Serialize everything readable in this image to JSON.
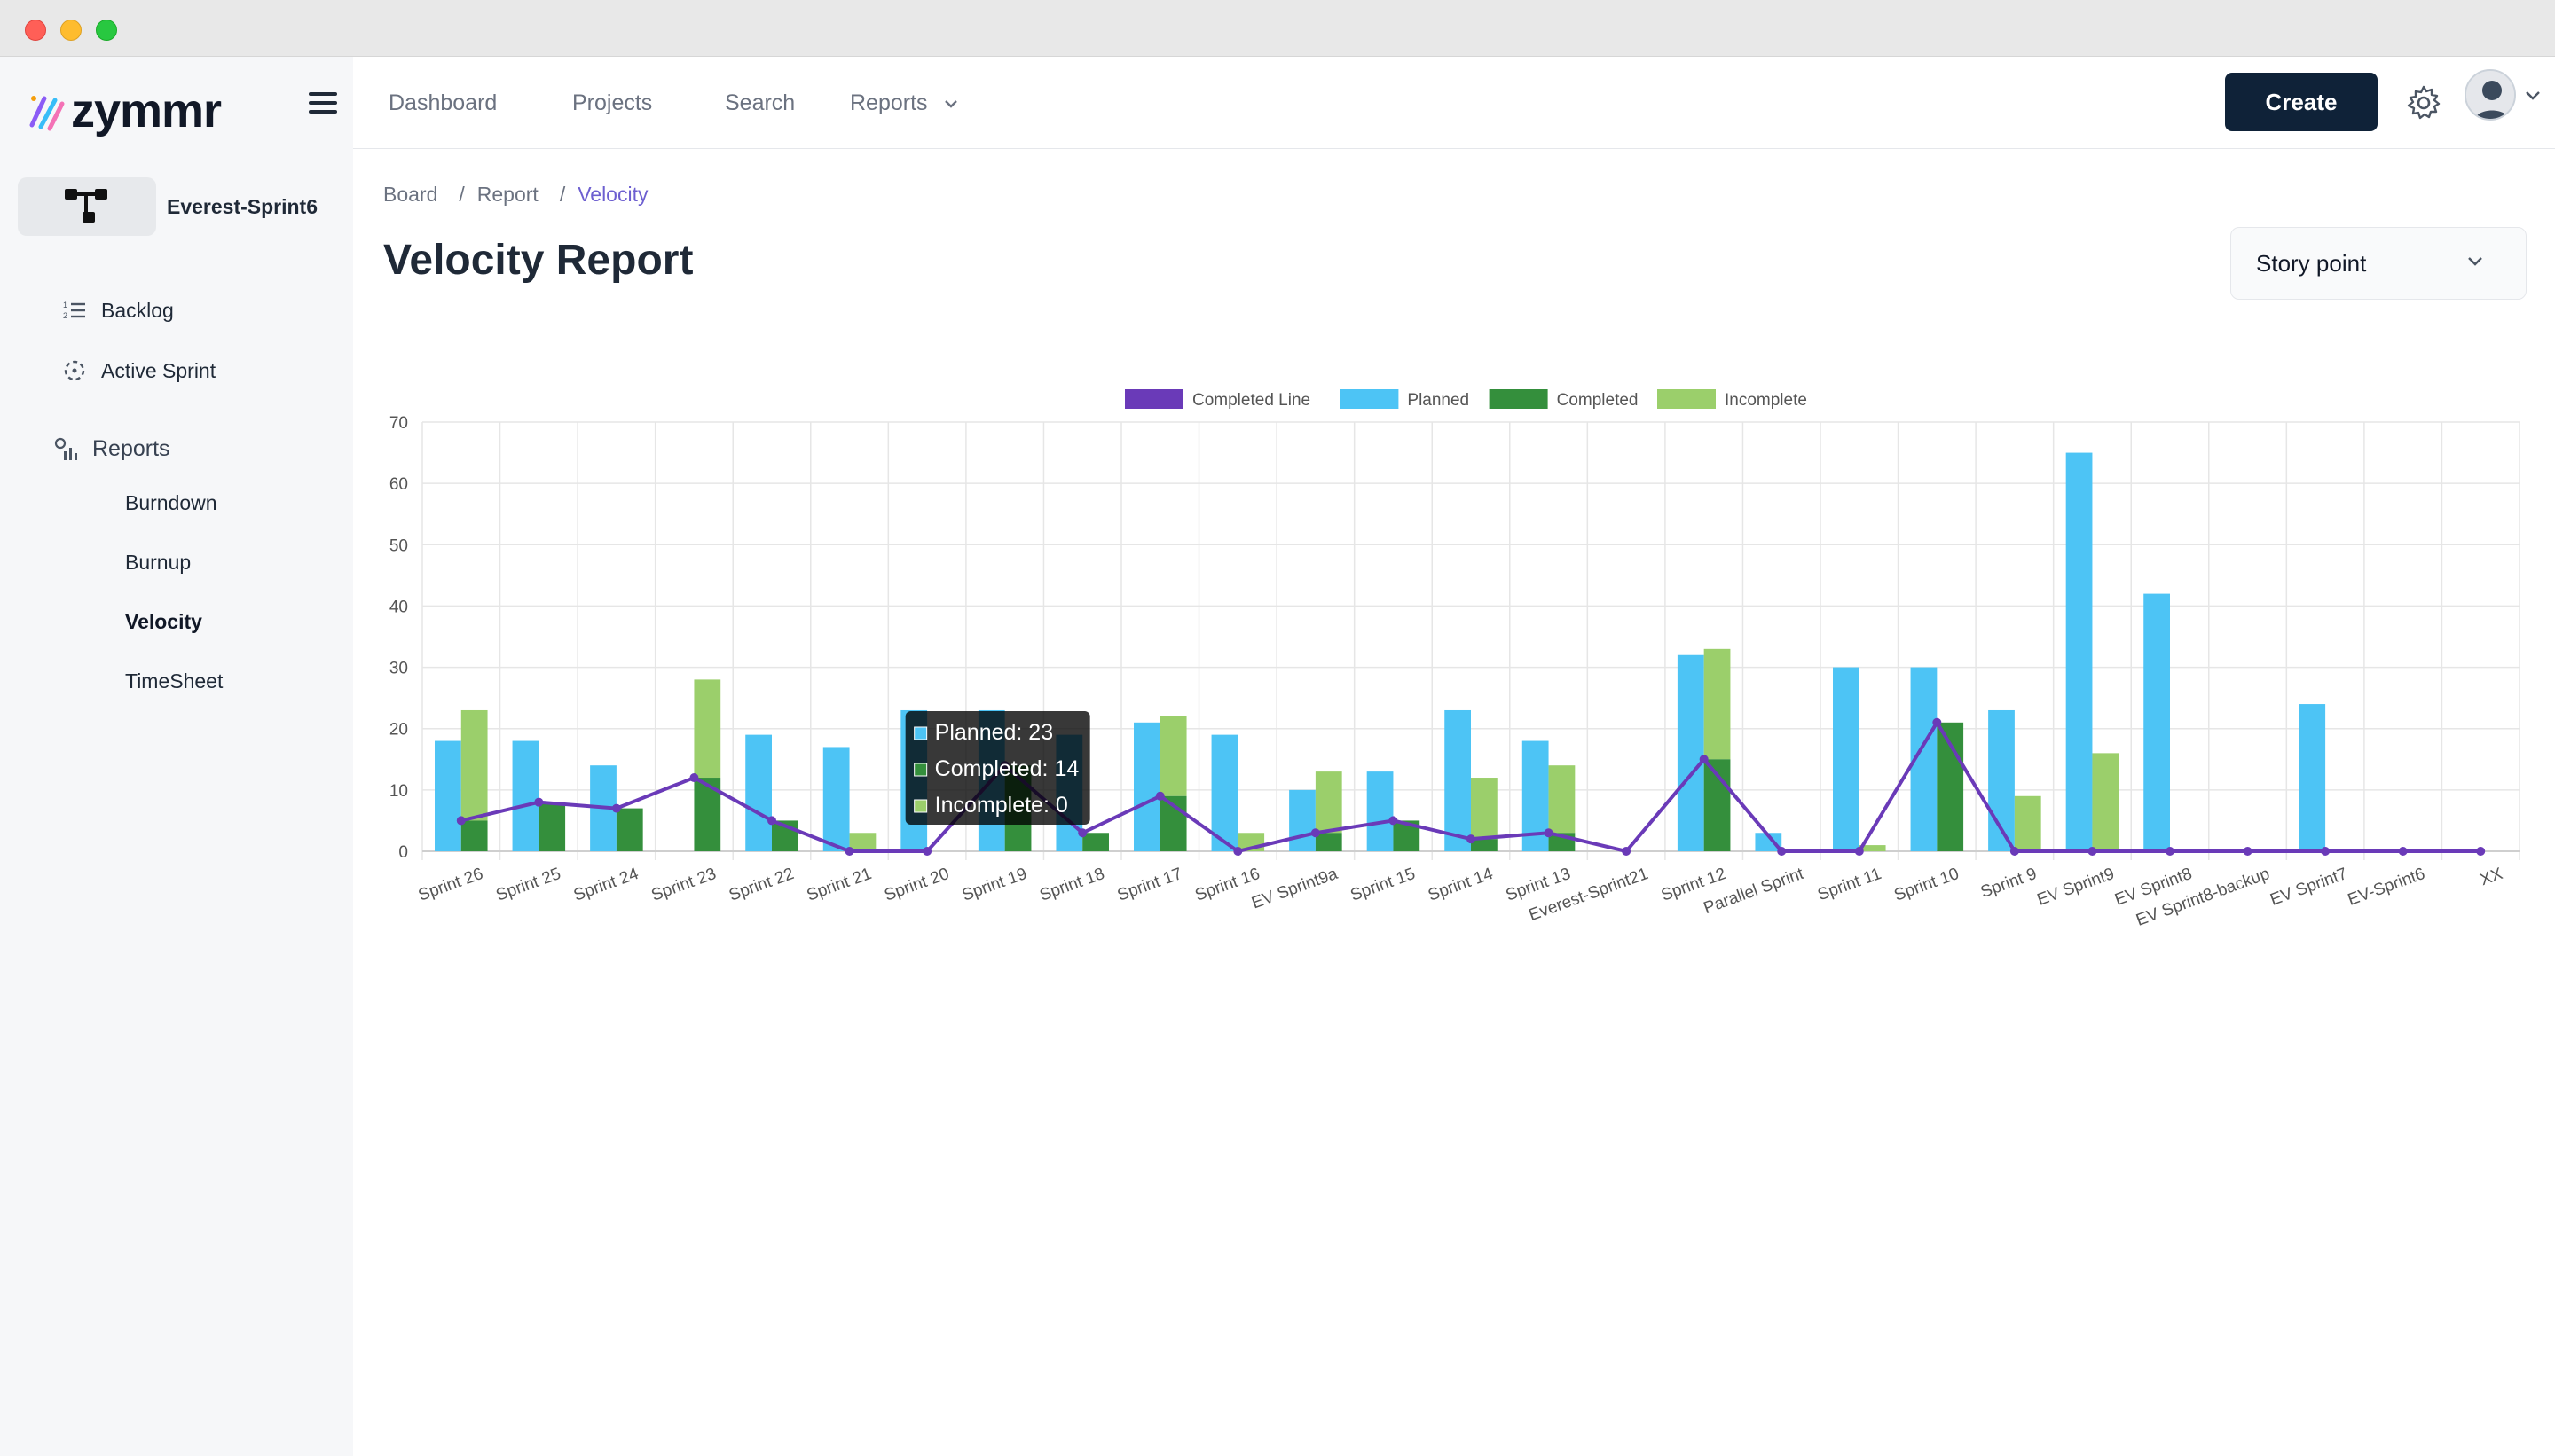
{
  "app": {
    "logo_text": "zymmr"
  },
  "project": {
    "name": "Everest-Sprint6"
  },
  "sidebar": {
    "items": [
      {
        "label": "Backlog",
        "icon": "list-ordered-icon"
      },
      {
        "label": "Active Sprint",
        "icon": "dashed-circle-icon"
      }
    ],
    "reports_label": "Reports",
    "reports": [
      "Burndown",
      "Burnup",
      "Velocity",
      "TimeSheet"
    ]
  },
  "topnav": {
    "links": [
      "Dashboard",
      "Projects",
      "Search",
      "Reports"
    ],
    "create_label": "Create"
  },
  "breadcrumb": [
    "Board",
    "Report",
    "Velocity"
  ],
  "page": {
    "title": "Velocity Report",
    "select_value": "Story point"
  },
  "colors": {
    "completed_line": "#6a3ab8",
    "planned": "#4dc4f5",
    "completed": "#348f3c",
    "incomplete": "#9bcf6b"
  },
  "chart_data": {
    "type": "bar",
    "legend": [
      "Completed Line",
      "Planned",
      "Completed",
      "Incomplete"
    ],
    "legend_position": "top-center",
    "grid": true,
    "ylim": [
      0,
      70
    ],
    "yticks": [
      0,
      10,
      20,
      30,
      40,
      50,
      60,
      70
    ],
    "categories": [
      "Sprint 26",
      "Sprint 25",
      "Sprint 24",
      "Sprint 23",
      "Sprint 22",
      "Sprint 21",
      "Sprint 20",
      "Sprint 19",
      "Sprint 18",
      "Sprint 17",
      "Sprint 16",
      "EV Sprint9a",
      "Sprint 15",
      "Sprint 14",
      "Sprint 13",
      "Everest-Sprint21",
      "Sprint 12",
      "Parallel Sprint",
      "Sprint 11",
      "Sprint 10",
      "Sprint 9",
      "EV Sprint9",
      "EV Sprint8",
      "EV Sprint8-backup",
      "EV Sprint7",
      "EV-Sprint6",
      "XX"
    ],
    "series": [
      {
        "name": "Planned",
        "values": [
          18,
          18,
          14,
          0,
          19,
          17,
          23,
          23,
          19,
          21,
          19,
          10,
          13,
          23,
          18,
          0,
          32,
          3,
          30,
          30,
          23,
          65,
          42,
          0,
          24,
          0,
          0
        ]
      },
      {
        "name": "Completed",
        "values": [
          5,
          8,
          7,
          12,
          5,
          0,
          0,
          14,
          3,
          9,
          0,
          3,
          5,
          2,
          3,
          0,
          15,
          0,
          0,
          21,
          0,
          0,
          0,
          0,
          0,
          0,
          0
        ]
      },
      {
        "name": "Incomplete",
        "values": [
          18,
          0,
          0,
          16,
          0,
          3,
          0,
          0,
          0,
          13,
          3,
          10,
          0,
          10,
          11,
          0,
          18,
          0,
          1,
          0,
          9,
          16,
          0,
          0,
          0,
          0,
          0
        ]
      },
      {
        "name": "Completed Line",
        "values": [
          5,
          8,
          7,
          12,
          5,
          0,
          0,
          14,
          3,
          9,
          0,
          3,
          5,
          2,
          3,
          0,
          15,
          0,
          0,
          21,
          0,
          0,
          0,
          0,
          0,
          0,
          0
        ]
      }
    ],
    "tooltip": {
      "category_index": 7,
      "lines": [
        "Planned: 23",
        "Completed: 14",
        "Incomplete: 0"
      ]
    }
  }
}
